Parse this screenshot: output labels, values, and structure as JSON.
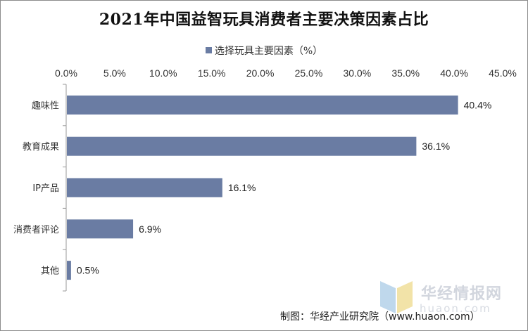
{
  "chart_data": {
    "type": "bar",
    "orientation": "horizontal",
    "title": "2021年中国益智玩具消费者主要决策因素占比",
    "series": [
      {
        "name": "选择玩具主要因素（%）",
        "values": [
          40.4,
          36.1,
          16.1,
          6.9,
          0.5
        ]
      }
    ],
    "categories": [
      "趣味性",
      "教育成果",
      "IP产品",
      "消费者评论",
      "其他"
    ],
    "data_labels": [
      "40.4%",
      "36.1%",
      "16.1%",
      "6.9%",
      "0.5%"
    ],
    "x_ticks": [
      "0.0%",
      "5.0%",
      "10.0%",
      "15.0%",
      "20.0%",
      "25.0%",
      "30.0%",
      "35.0%",
      "40.0%",
      "45.0%"
    ],
    "xlim": [
      0,
      45
    ],
    "x_axis_position": "top",
    "legend_position": "top",
    "grid": false,
    "bar_color": "#6a7ca3"
  },
  "watermark": {
    "name": "华经情报网",
    "url": "huaon.com"
  },
  "source_note": "制图：华经产业研究院（www.huaon.com）"
}
